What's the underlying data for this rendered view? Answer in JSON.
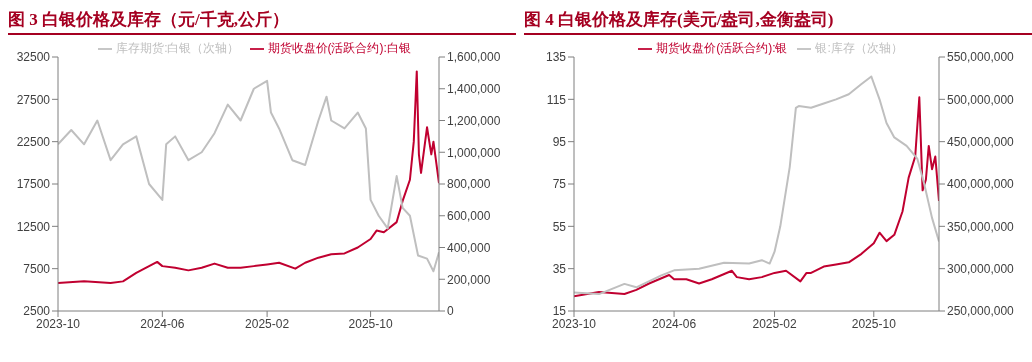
{
  "chart_data": [
    {
      "type": "line",
      "title": "图 3 白银价格及库存（元/千克,公斤）",
      "legend": "top",
      "grid": false,
      "marker": "none",
      "line_style": "solid",
      "xlim": [
        "2023-10-01",
        "2026-03-10"
      ],
      "xticks": [
        "2023-10",
        "2024-06",
        "2025-02",
        "2025-10"
      ],
      "ylim": [
        2500,
        32500
      ],
      "yticks": [
        2500,
        7500,
        12500,
        17500,
        22500,
        27500,
        32500
      ],
      "y2lim": [
        0,
        1600000
      ],
      "y2ticks": [
        0,
        {
          "value": 200000,
          "label": "200,000"
        },
        {
          "value": 400000,
          "label": "400,000"
        },
        {
          "value": 600000,
          "label": "600,000"
        },
        {
          "value": 800000,
          "label": "800,000"
        },
        {
          "value": 1000000,
          "label": "1,000,000"
        },
        {
          "value": 1200000,
          "label": "1,200,000"
        },
        {
          "value": 1400000,
          "label": "1,400,000"
        },
        {
          "value": 1600000,
          "label": "1,600,000"
        }
      ],
      "series": [
        {
          "name": "期货收盘价(活跃合约):白银",
          "color": "#c00030",
          "x": [
            "2023-10-01",
            "2023-12-01",
            "2024-02-01",
            "2024-03-01",
            "2024-04-01",
            "2024-05-01",
            "2024-05-20",
            "2024-06-01",
            "2024-07-01",
            "2024-08-01",
            "2024-09-01",
            "2024-10-01",
            "2024-11-01",
            "2024-12-01",
            "2025-01-01",
            "2025-02-01",
            "2025-03-01",
            "2025-04-08",
            "2025-05-01",
            "2025-06-01",
            "2025-07-01",
            "2025-08-01",
            "2025-09-01",
            "2025-10-01",
            "2025-10-15",
            "2025-11-01",
            "2025-12-01",
            "2025-12-15",
            "2026-01-01",
            "2026-01-10",
            "2026-01-17",
            "2026-01-22",
            "2026-01-27",
            "2026-02-10",
            "2026-02-20",
            "2026-02-25",
            "2026-03-10"
          ],
          "values": [
            5800,
            6000,
            5800,
            6000,
            7000,
            7800,
            8300,
            7800,
            7600,
            7300,
            7600,
            8100,
            7600,
            7600,
            7800,
            8000,
            8200,
            7500,
            8200,
            8800,
            9200,
            9300,
            10000,
            11000,
            12000,
            11800,
            13000,
            15500,
            18000,
            22500,
            30800,
            21000,
            18800,
            24200,
            21000,
            22500,
            17600
          ]
        },
        {
          "name": "库存期货:白银（次轴）",
          "color": "#bfbfbf",
          "axis": "y2",
          "x": [
            "2023-10-01",
            "2023-11-01",
            "2023-12-01",
            "2024-01-01",
            "2024-02-01",
            "2024-03-01",
            "2024-04-01",
            "2024-05-01",
            "2024-06-01",
            "2024-06-10",
            "2024-07-01",
            "2024-08-01",
            "2024-09-01",
            "2024-10-01",
            "2024-11-01",
            "2024-12-01",
            "2025-01-01",
            "2025-02-01",
            "2025-02-10",
            "2025-03-01",
            "2025-04-01",
            "2025-05-01",
            "2025-06-01",
            "2025-06-20",
            "2025-07-01",
            "2025-08-01",
            "2025-09-01",
            "2025-09-20",
            "2025-10-01",
            "2025-10-20",
            "2025-11-10",
            "2025-12-01",
            "2025-12-15",
            "2026-01-01",
            "2026-01-20",
            "2026-02-10",
            "2026-02-25",
            "2026-03-10"
          ],
          "values": [
            1050000,
            1140000,
            1050000,
            1200000,
            950000,
            1050000,
            1100000,
            800000,
            700000,
            1050000,
            1100000,
            950000,
            1000000,
            1120000,
            1300000,
            1200000,
            1400000,
            1450000,
            1250000,
            1150000,
            950000,
            920000,
            1200000,
            1350000,
            1200000,
            1150000,
            1250000,
            1150000,
            700000,
            600000,
            520000,
            850000,
            650000,
            600000,
            350000,
            330000,
            250000,
            370000
          ]
        }
      ]
    },
    {
      "type": "line",
      "title": "图 4 白银价格及库存(美元/盎司,金衡盎司)",
      "legend": "top",
      "grid": false,
      "marker": "none",
      "line_style": "solid",
      "xlim": [
        "2023-10-01",
        "2026-03-09"
      ],
      "xticks": [
        "2023-10",
        "2024-06",
        "2025-02",
        "2025-10"
      ],
      "ylim": [
        15,
        135
      ],
      "yticks": [
        15,
        35,
        55,
        75,
        95,
        115,
        135
      ],
      "y2lim": [
        250000000,
        550000000
      ],
      "y2ticks": [
        {
          "value": 250000000,
          "label": "250,000,000"
        },
        {
          "value": 300000000,
          "label": "300,000,000"
        },
        {
          "value": 350000000,
          "label": "350,000,000"
        },
        {
          "value": 400000000,
          "label": "400,000,000"
        },
        {
          "value": 450000000,
          "label": "450,000,000"
        },
        {
          "value": 500000000,
          "label": "500,000,000"
        },
        {
          "value": 550000000,
          "label": "550,000,000"
        }
      ],
      "series": [
        {
          "name": "期货收盘价(活跃合约):银",
          "color": "#c00030",
          "x": [
            "2023-10-01",
            "2023-12-01",
            "2024-02-01",
            "2024-03-01",
            "2024-04-01",
            "2024-05-20",
            "2024-06-01",
            "2024-07-01",
            "2024-08-01",
            "2024-09-01",
            "2024-10-20",
            "2024-11-01",
            "2024-12-01",
            "2025-01-01",
            "2025-02-01",
            "2025-03-01",
            "2025-04-05",
            "2025-04-20",
            "2025-05-01",
            "2025-06-01",
            "2025-07-01",
            "2025-08-01",
            "2025-09-01",
            "2025-10-01",
            "2025-10-15",
            "2025-11-01",
            "2025-11-20",
            "2025-12-10",
            "2025-12-25",
            "2026-01-10",
            "2026-01-20",
            "2026-01-28",
            "2026-02-05",
            "2026-02-12",
            "2026-02-20",
            "2026-02-28",
            "2026-03-09"
          ],
          "values": [
            22,
            24,
            23,
            25,
            28,
            32,
            30,
            30,
            28,
            30,
            34,
            31,
            30,
            31,
            33,
            34,
            29,
            33,
            33,
            36,
            37,
            38,
            42,
            47,
            52,
            48,
            51,
            62,
            78,
            88,
            116,
            72,
            77,
            93,
            82,
            88,
            67
          ]
        },
        {
          "name": "银:库存（次轴）",
          "color": "#bfbfbf",
          "axis": "y2",
          "x": [
            "2023-10-01",
            "2023-12-01",
            "2024-02-01",
            "2024-03-01",
            "2024-05-01",
            "2024-06-01",
            "2024-08-01",
            "2024-10-01",
            "2024-12-01",
            "2025-01-01",
            "2025-01-20",
            "2025-02-01",
            "2025-02-15",
            "2025-03-10",
            "2025-03-25",
            "2025-04-01",
            "2025-05-01",
            "2025-06-01",
            "2025-07-01",
            "2025-08-01",
            "2025-09-01",
            "2025-09-25",
            "2025-10-15",
            "2025-11-01",
            "2025-11-20",
            "2025-12-20",
            "2026-01-15",
            "2026-02-01",
            "2026-02-20",
            "2026-03-09"
          ],
          "values": [
            272000000,
            270000000,
            282000000,
            278000000,
            292000000,
            298000000,
            300000000,
            307000000,
            306000000,
            310000000,
            306000000,
            320000000,
            350000000,
            420000000,
            490000000,
            492000000,
            490000000,
            495000000,
            500000000,
            506000000,
            518000000,
            527000000,
            500000000,
            472000000,
            455000000,
            445000000,
            430000000,
            400000000,
            360000000,
            332000000
          ]
        }
      ]
    }
  ]
}
